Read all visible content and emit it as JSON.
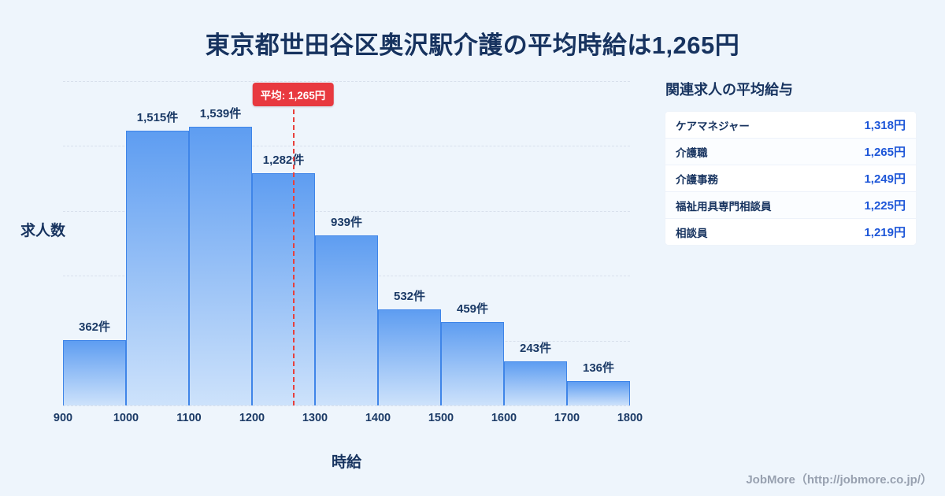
{
  "title": "東京都世田谷区奥沢駅介護の平均時給は1,265円",
  "chart_data": {
    "type": "bar",
    "title": "東京都世田谷区奥沢駅介護の平均時給は1,265円",
    "xlabel": "時給",
    "ylabel": "求人数",
    "bin_edges": [
      900,
      1000,
      1100,
      1200,
      1300,
      1400,
      1500,
      1600,
      1700,
      1800
    ],
    "x_ticks": [
      "900",
      "1000",
      "1100",
      "1200",
      "1300",
      "1400",
      "1500",
      "1600",
      "1700",
      "1800"
    ],
    "values": [
      362,
      1515,
      1539,
      1282,
      939,
      532,
      459,
      243,
      136
    ],
    "value_labels": [
      "362件",
      "1,515件",
      "1,539件",
      "1,282件",
      "939件",
      "532件",
      "459件",
      "243件",
      "136件"
    ],
    "ylim": [
      0,
      1790
    ],
    "grid": "horizontal-dashed",
    "gridline_count": 6,
    "legend": "none",
    "mean": {
      "value": 1265,
      "label": "平均: 1,265円"
    }
  },
  "side_panel": {
    "title": "関連求人の平均給与",
    "rows": [
      {
        "label": "ケアマネジャー",
        "value": "1,318円"
      },
      {
        "label": "介護職",
        "value": "1,265円"
      },
      {
        "label": "介護事務",
        "value": "1,249円"
      },
      {
        "label": "福祉用具専門相談員",
        "value": "1,225円"
      },
      {
        "label": "相談員",
        "value": "1,219円"
      }
    ]
  },
  "footer": {
    "credit": "JobMore（http://jobmore.co.jp/）"
  },
  "colors": {
    "background": "#eef5fc",
    "title_text": "#17335f",
    "bar_fill_top": "#5e9df1",
    "bar_fill_bottom": "#cde2fb",
    "bar_border": "#3f85e8",
    "mean_line": "#e8403c",
    "mean_badge_bg": "#e8393f",
    "value_text": "#1d56d8",
    "footer_text": "#98a1b0"
  }
}
